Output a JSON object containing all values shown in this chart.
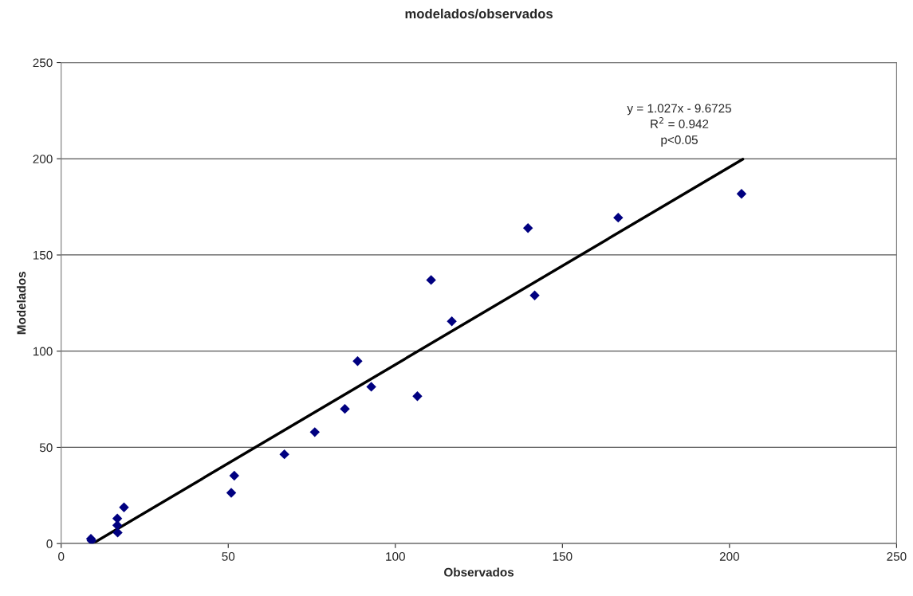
{
  "chart_data": {
    "type": "scatter",
    "title": "modelados/observados",
    "xlabel": "Observados",
    "ylabel": "Modelados",
    "xlim": [
      0,
      250
    ],
    "xticks": [
      0,
      50,
      100,
      150,
      200,
      250
    ],
    "ylim": [
      0,
      250
    ],
    "yticks": [
      0,
      50,
      100,
      150,
      200,
      250
    ],
    "grid": "y",
    "marker": "diamond",
    "series": [
      {
        "color": "#000080",
        "x": [
          8.9,
          9.1,
          16.9,
          16.8,
          16.8,
          18.8,
          50.9,
          51.8,
          66.8,
          75.9,
          84.9,
          88.7,
          92.8,
          106.6,
          110.7,
          116.9,
          139.7,
          141.7,
          166.7,
          203.6
        ],
        "values": [
          2.5,
          1.5,
          5.7,
          9.5,
          13,
          18.8,
          26.4,
          35.3,
          46.4,
          57.9,
          70,
          94.8,
          81.5,
          76.6,
          137,
          115.5,
          164,
          129,
          169.4,
          181.8
        ]
      },
      {
        "type": "line",
        "color": "#000000",
        "marker": "none",
        "line_style": "solid",
        "x": [
          9.4,
          204
        ],
        "values": [
          0,
          199.8
        ]
      }
    ],
    "annotations": [
      "y = 1.027x - 9.6725\nR$^{2}$ = 0.942\np<0.05"
    ]
  }
}
